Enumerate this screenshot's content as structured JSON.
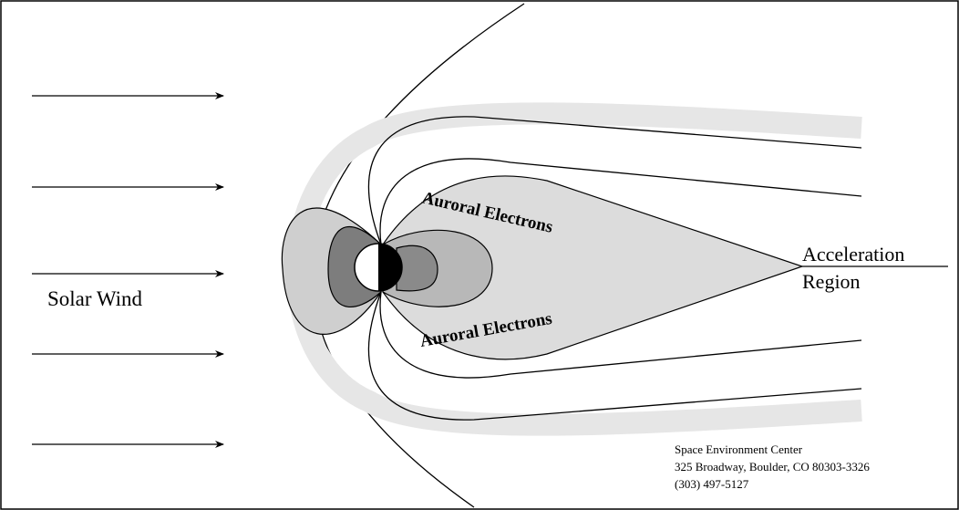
{
  "labels": {
    "solar_wind": "Solar Wind",
    "auroral_upper": "Auroral Electrons",
    "auroral_lower": "Auroral Electrons",
    "acceleration": "Acceleration",
    "region": "Region"
  },
  "credit": {
    "name": "Space Environment Center",
    "address": "325 Broadway, Boulder, CO  80303-3326",
    "phone": "(303) 497-5127"
  }
}
